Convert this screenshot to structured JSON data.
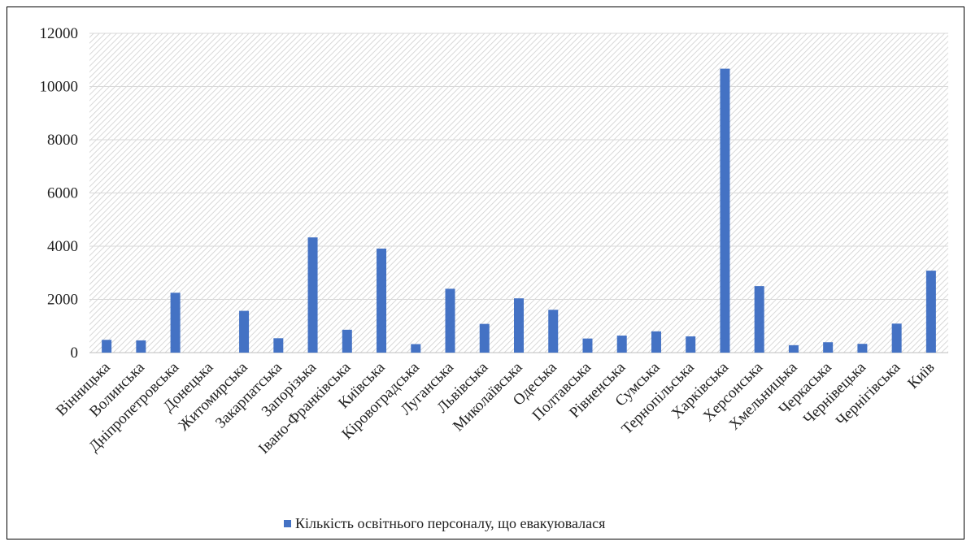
{
  "chart_data": {
    "type": "bar",
    "categories": [
      "Вінницька",
      "Волинська",
      "Дніпропетровська",
      "Донецька",
      "Житомирська",
      "Закарпатська",
      "Запорізька",
      "Івано-Франківська",
      "Київська",
      "Кіровоградська",
      "Луганська",
      "Львівська",
      "Миколаївська",
      "Одеська",
      "Полтавська",
      "Рівненська",
      "Сумська",
      "Тернопільська",
      "Харківська",
      "Херсонська",
      "Хмельницька",
      "Черкаська",
      "Чернівецька",
      "Чернігівська",
      "Київ"
    ],
    "series": [
      {
        "name": "Кількість освітнього персоналу, що евакуювалася",
        "values": [
          480,
          460,
          2250,
          0,
          1570,
          540,
          4330,
          860,
          3910,
          320,
          2400,
          1080,
          2040,
          1610,
          530,
          640,
          800,
          610,
          10670,
          2500,
          280,
          390,
          330,
          1090,
          3080
        ],
        "color": "#4472C4"
      }
    ],
    "ylim": [
      0,
      12000
    ],
    "yticks": [
      0,
      2000,
      4000,
      6000,
      8000,
      10000,
      12000
    ],
    "grid": true,
    "legend": "bottom"
  }
}
